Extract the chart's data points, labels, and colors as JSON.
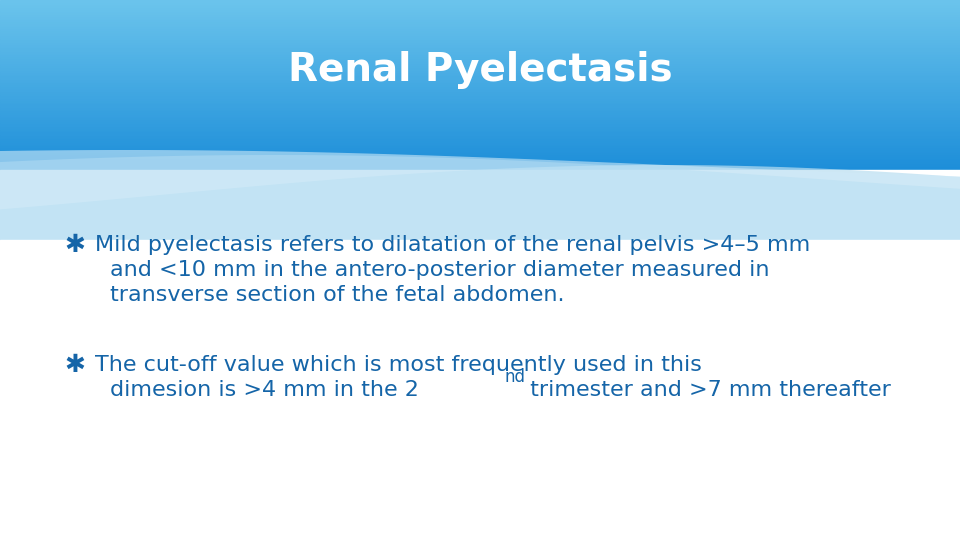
{
  "title": "Renal Pyelectasis",
  "title_color": "#ffffff",
  "title_fontsize": 28,
  "title_fontstyle": "bold",
  "header_bg_color_top": "#2196d3",
  "header_bg_color_bottom": "#5bbde8",
  "body_bg_color": "#ffffff",
  "bullet_color": "#1565a8",
  "bullet_marker": "✱",
  "bullet1_line1": "Mild pyelectasis refers to dilatation of the renal pelvis >4–5 mm",
  "bullet1_line2": "and <10 mm in the antero-posterior diameter measured in",
  "bullet1_line3": "transverse section of the fetal abdomen.",
  "bullet2_line1": "The cut-off value which is most frequently used in this",
  "bullet2_line2": "dimesion is >4 mm in the 2",
  "bullet2_line2_super": "nd",
  "bullet2_line2_rest": " trimester and >7 mm thereafter",
  "text_fontsize": 16,
  "wave_color1": "#ffffff",
  "wave_color2": "#aad8f0",
  "wave_color3": "#c8e8f8"
}
